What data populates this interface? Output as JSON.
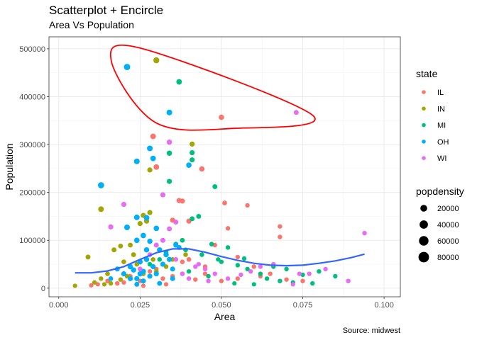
{
  "chart_data": {
    "type": "scatter",
    "title": "Scatterplot + Encircle",
    "subtitle": "Area Vs Population",
    "xlabel": "Area",
    "ylabel": "Population",
    "caption": "Source: midwest",
    "xlim": [
      -0.003,
      0.105
    ],
    "ylim": [
      -18000,
      525000
    ],
    "x_ticks": [
      0,
      0.025,
      0.05,
      0.075,
      0.1
    ],
    "x_tick_labels": [
      "0.000",
      "0.025",
      "0.050",
      "0.075",
      "0.100"
    ],
    "y_ticks": [
      0,
      100000,
      200000,
      300000,
      400000,
      500000
    ],
    "y_tick_labels": [
      "0",
      "100000",
      "200000",
      "300000",
      "400000",
      "500000"
    ],
    "grid": true,
    "legend_position": "right",
    "color_legend": {
      "title": "state",
      "entries": [
        {
          "label": "IL",
          "color": "#F8766D"
        },
        {
          "label": "IN",
          "color": "#A3A500"
        },
        {
          "label": "MI",
          "color": "#00BF7D"
        },
        {
          "label": "OH",
          "color": "#00B0F6"
        },
        {
          "label": "WI",
          "color": "#E76BF3"
        }
      ]
    },
    "size_legend": {
      "title": "popdensity",
      "entries": [
        {
          "label": "20000",
          "value": 20000
        },
        {
          "label": "40000",
          "value": 40000
        },
        {
          "label": "60000",
          "value": 60000
        },
        {
          "label": "80000",
          "value": 80000
        }
      ]
    },
    "series": [
      {
        "name": "IL",
        "color": "#F8766D",
        "points": [
          [
            0.05,
            357000,
            7000
          ],
          [
            0.029,
            317000,
            9000
          ],
          [
            0.03,
            253000,
            9000
          ],
          [
            0.044,
            249000,
            7000
          ],
          [
            0.037,
            183000,
            6000
          ],
          [
            0.038,
            182000,
            6000
          ],
          [
            0.051,
            178000,
            4000
          ],
          [
            0.058,
            173000,
            3000
          ],
          [
            0.068,
            129000,
            3000
          ],
          [
            0.068,
            107000,
            3000
          ],
          [
            0.04,
            140000,
            6000
          ],
          [
            0.035,
            142000,
            6000
          ],
          [
            0.052,
            125000,
            3000
          ],
          [
            0.048,
            90000,
            3000
          ],
          [
            0.055,
            65000,
            3000
          ],
          [
            0.04,
            60000,
            4000
          ],
          [
            0.06,
            45000,
            3000
          ],
          [
            0.045,
            30000,
            3000
          ],
          [
            0.032,
            20000,
            3000
          ],
          [
            0.025,
            15000,
            3000
          ],
          [
            0.018,
            10000,
            3000
          ],
          [
            0.015,
            15000,
            3000
          ],
          [
            0.012,
            8000,
            2500
          ],
          [
            0.01,
            6000,
            2500
          ],
          [
            0.022,
            25000,
            3000
          ],
          [
            0.028,
            35000,
            3000
          ],
          [
            0.035,
            25000,
            3000
          ],
          [
            0.042,
            18000,
            3000
          ],
          [
            0.05,
            15000,
            3000
          ],
          [
            0.055,
            20000,
            3000
          ],
          [
            0.062,
            25000,
            3000
          ],
          [
            0.065,
            30000,
            3000
          ],
          [
            0.07,
            18000,
            3000
          ],
          [
            0.075,
            15000,
            3000
          ],
          [
            0.045,
            45000,
            3000
          ],
          [
            0.038,
            55000,
            3500
          ],
          [
            0.03,
            40000,
            3000
          ],
          [
            0.02,
            12000,
            3000
          ],
          [
            0.033,
            8000,
            2500
          ],
          [
            0.026,
            5000,
            2500
          ]
        ]
      },
      {
        "name": "IN",
        "color": "#A3A500",
        "points": [
          [
            0.03,
            476000,
            12000
          ],
          [
            0.041,
            301000,
            6000
          ],
          [
            0.028,
            247000,
            6000
          ],
          [
            0.013,
            165000,
            9000
          ],
          [
            0.028,
            158000,
            6000
          ],
          [
            0.026,
            152000,
            6000
          ],
          [
            0.027,
            140000,
            6000
          ],
          [
            0.025,
            135000,
            6000
          ],
          [
            0.009,
            65000,
            5000
          ],
          [
            0.017,
            80000,
            5000
          ],
          [
            0.019,
            88000,
            4500
          ],
          [
            0.022,
            90000,
            4500
          ],
          [
            0.023,
            70000,
            4500
          ],
          [
            0.02,
            55000,
            4000
          ],
          [
            0.024,
            50000,
            4000
          ],
          [
            0.018,
            40000,
            4000
          ],
          [
            0.015,
            30000,
            4000
          ],
          [
            0.013,
            20000,
            3000
          ],
          [
            0.011,
            12000,
            3000
          ],
          [
            0.005,
            5000,
            2500
          ],
          [
            0.016,
            10000,
            3000
          ],
          [
            0.021,
            25000,
            3500
          ],
          [
            0.026,
            30000,
            3500
          ],
          [
            0.03,
            35000,
            3500
          ],
          [
            0.033,
            45000,
            3500
          ],
          [
            0.035,
            60000,
            3500
          ],
          [
            0.039,
            70000,
            3500
          ],
          [
            0.029,
            60000,
            3500
          ],
          [
            0.019,
            18000,
            3000
          ],
          [
            0.014,
            8000,
            2500
          ]
        ]
      },
      {
        "name": "MI",
        "color": "#00BF7D",
        "points": [
          [
            0.037,
            431000,
            9000
          ],
          [
            0.041,
            283000,
            6000
          ],
          [
            0.034,
            282000,
            7000
          ],
          [
            0.041,
            268000,
            6000
          ],
          [
            0.034,
            223000,
            6000
          ],
          [
            0.048,
            212000,
            5000
          ],
          [
            0.043,
            150000,
            5000
          ],
          [
            0.041,
            145000,
            5000
          ],
          [
            0.038,
            100000,
            4500
          ],
          [
            0.036,
            92000,
            4500
          ],
          [
            0.047,
            92000,
            3500
          ],
          [
            0.052,
            85000,
            3500
          ],
          [
            0.049,
            60000,
            3000
          ],
          [
            0.055,
            48000,
            3000
          ],
          [
            0.058,
            40000,
            3000
          ],
          [
            0.062,
            30000,
            3000
          ],
          [
            0.064,
            20000,
            3000
          ],
          [
            0.068,
            15000,
            3000
          ],
          [
            0.072,
            12000,
            3000
          ],
          [
            0.078,
            10000,
            3000
          ],
          [
            0.08,
            35000,
            3000
          ],
          [
            0.085,
            25000,
            3000
          ],
          [
            0.06,
            8000,
            2500
          ],
          [
            0.054,
            10000,
            2500
          ],
          [
            0.046,
            25000,
            3000
          ],
          [
            0.04,
            35000,
            3000
          ],
          [
            0.031,
            60000,
            3500
          ],
          [
            0.028,
            50000,
            3500
          ],
          [
            0.033,
            75000,
            4000
          ],
          [
            0.039,
            80000,
            4000
          ],
          [
            0.044,
            70000,
            3500
          ],
          [
            0.05,
            55000,
            3000
          ],
          [
            0.057,
            62000,
            3000
          ],
          [
            0.066,
            45000,
            3000
          ],
          [
            0.07,
            40000,
            3000
          ],
          [
            0.075,
            28000,
            3000
          ]
        ]
      },
      {
        "name": "OH",
        "color": "#00B0F6",
        "points": [
          [
            0.021,
            462000,
            15000
          ],
          [
            0.034,
            367000,
            10000
          ],
          [
            0.028,
            292000,
            10000
          ],
          [
            0.029,
            271000,
            9000
          ],
          [
            0.04,
            257000,
            8000
          ],
          [
            0.024,
            265000,
            10000
          ],
          [
            0.013,
            215000,
            14000
          ],
          [
            0.021,
            127000,
            10000
          ],
          [
            0.024,
            148000,
            9000
          ],
          [
            0.027,
            147000,
            9000
          ],
          [
            0.03,
            125000,
            8000
          ],
          [
            0.026,
            110000,
            8000
          ],
          [
            0.024,
            100000,
            8000
          ],
          [
            0.028,
            98000,
            7000
          ],
          [
            0.027,
            80000,
            7000
          ],
          [
            0.031,
            80000,
            7000
          ],
          [
            0.033,
            70000,
            7000
          ],
          [
            0.025,
            55000,
            7000
          ],
          [
            0.022,
            45000,
            7000
          ],
          [
            0.02,
            30000,
            6000
          ],
          [
            0.023,
            38000,
            7000
          ],
          [
            0.026,
            35000,
            7000
          ],
          [
            0.028,
            25000,
            6000
          ],
          [
            0.024,
            20000,
            6000
          ],
          [
            0.026,
            15000,
            6000
          ],
          [
            0.029,
            45000,
            6000
          ],
          [
            0.034,
            60000,
            6000
          ],
          [
            0.032,
            50000,
            6000
          ],
          [
            0.035,
            40000,
            5000
          ],
          [
            0.03,
            30000,
            6000
          ],
          [
            0.025,
            30000,
            7000
          ],
          [
            0.022,
            20000,
            6000
          ],
          [
            0.027,
            60000,
            7000
          ],
          [
            0.036,
            90000,
            6000
          ],
          [
            0.031,
            10000,
            5000
          ],
          [
            0.024,
            8000,
            5000
          ],
          [
            0.035,
            20000,
            5000
          ],
          [
            0.037,
            85000,
            5000
          ],
          [
            0.018,
            40000,
            5000
          ],
          [
            0.016,
            20000,
            4000
          ]
        ]
      },
      {
        "name": "WI",
        "color": "#E76BF3",
        "points": [
          [
            0.073,
            367000,
            5000
          ],
          [
            0.034,
            305000,
            7000
          ],
          [
            0.032,
            195000,
            6000
          ],
          [
            0.02,
            175000,
            6000
          ],
          [
            0.016,
            128000,
            6000
          ],
          [
            0.036,
            138000,
            5000
          ],
          [
            0.034,
            124000,
            5000
          ],
          [
            0.032,
            100000,
            5000
          ],
          [
            0.03,
            90000,
            5000
          ],
          [
            0.094,
            115000,
            3000
          ],
          [
            0.066,
            50000,
            3000
          ],
          [
            0.062,
            45000,
            3000
          ],
          [
            0.059,
            35000,
            3000
          ],
          [
            0.056,
            28000,
            3000
          ],
          [
            0.052,
            20000,
            3000
          ],
          [
            0.048,
            30000,
            3000
          ],
          [
            0.045,
            40000,
            3000
          ],
          [
            0.043,
            50000,
            3000
          ],
          [
            0.074,
            30000,
            3000
          ],
          [
            0.077,
            30000,
            3000
          ],
          [
            0.082,
            40000,
            3000
          ],
          [
            0.089,
            15000,
            3000
          ],
          [
            0.072,
            8000,
            2500
          ],
          [
            0.04,
            20000,
            3000
          ],
          [
            0.036,
            60000,
            4000
          ],
          [
            0.028,
            70000,
            4000
          ],
          [
            0.025,
            40000,
            4000
          ],
          [
            0.038,
            30000,
            3500
          ],
          [
            0.042,
            45000,
            3000
          ],
          [
            0.046,
            15000,
            3000
          ]
        ]
      }
    ],
    "smooth_line": {
      "color": "#3366FF",
      "points": [
        [
          0.005,
          32000
        ],
        [
          0.01,
          32000
        ],
        [
          0.015,
          36000
        ],
        [
          0.02,
          45000
        ],
        [
          0.025,
          60000
        ],
        [
          0.03,
          74000
        ],
        [
          0.035,
          82000
        ],
        [
          0.04,
          82000
        ],
        [
          0.045,
          75000
        ],
        [
          0.05,
          66000
        ],
        [
          0.055,
          58000
        ],
        [
          0.06,
          52000
        ],
        [
          0.065,
          48000
        ],
        [
          0.07,
          47000
        ],
        [
          0.075,
          48000
        ],
        [
          0.08,
          52000
        ],
        [
          0.085,
          57000
        ],
        [
          0.09,
          64000
        ],
        [
          0.094,
          71000
        ]
      ]
    },
    "encircle": {
      "color": "#FF0000",
      "points": [
        [
          0.021,
          462000
        ],
        [
          0.03,
          476000
        ],
        [
          0.037,
          431000
        ],
        [
          0.073,
          367000
        ],
        [
          0.05,
          357000
        ],
        [
          0.034,
          367000
        ]
      ]
    }
  }
}
